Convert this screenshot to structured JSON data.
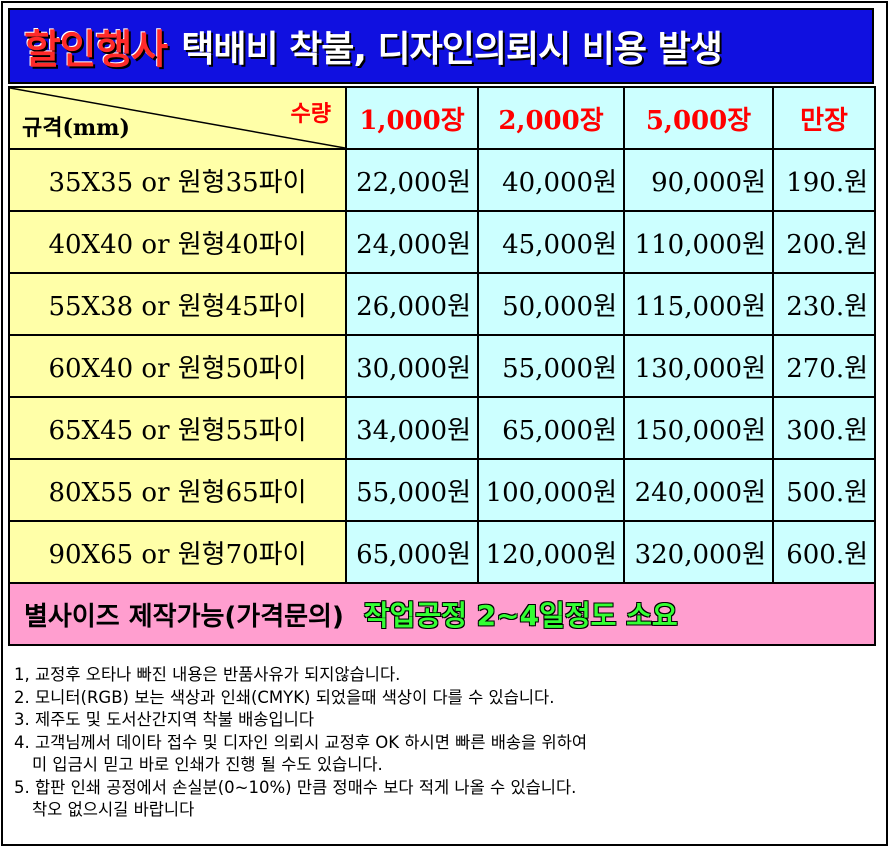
{
  "banner": {
    "highlight": "할인행사",
    "text": "택배비 착불, 디자인의뢰시 비용 발생"
  },
  "table": {
    "corner_qty": "수량",
    "corner_spec": "규격(mm)",
    "quantities": [
      "1,000장",
      "2,000장",
      "5,000장",
      "만장"
    ],
    "rows": [
      {
        "spec": "35X35 or 원형35파이",
        "prices": [
          "22,000원",
          "40,000원",
          "90,000원",
          "190.원"
        ]
      },
      {
        "spec": "40X40 or 원형40파이",
        "prices": [
          "24,000원",
          "45,000원",
          "110,000원",
          "200.원"
        ]
      },
      {
        "spec": "55X38 or 원형45파이",
        "prices": [
          "26,000원",
          "50,000원",
          "115,000원",
          "230.원"
        ]
      },
      {
        "spec": "60X40 or 원형50파이",
        "prices": [
          "30,000원",
          "55,000원",
          "130,000원",
          "270.원"
        ]
      },
      {
        "spec": "65X45 or 원형55파이",
        "prices": [
          "34,000원",
          "65,000원",
          "150,000원",
          "300.원"
        ]
      },
      {
        "spec": "80X55 or 원형65파이",
        "prices": [
          "55,000원",
          "100,000원",
          "240,000원",
          "500.원"
        ]
      },
      {
        "spec": "90X65 or 원형70파이",
        "prices": [
          "65,000원",
          "120,000원",
          "320,000원",
          "600.원"
        ]
      }
    ],
    "footer_left": "별사이즈 제작가능(가격문의)",
    "footer_right": "작업공정 2~4일정도 소요"
  },
  "notes": [
    "1, 교정후 오타나 빠진 내용은 반품사유가 되지않습니다.",
    "2. 모니터(RGB) 보는 색상과 인쇄(CMYK) 되었을때 색상이 다를 수 있습니다.",
    "3. 제주도 및 도서산간지역 착불 배송입니다",
    "4. 고객님께서 데이타 접수 및 디자인 의뢰시 교정후 OK 하시면 빠른 배송을 위하여",
    "미 입금시 믿고 바로 인쇄가 진행 될 수도 있습니다.",
    "5. 합판 인쇄 공정에서 손실분(0~10%) 만큼 정매수 보다 적게 나올 수 있습니다.",
    "착오 없으시길 바랍니다"
  ],
  "colors": {
    "banner_bg": "#1010e0",
    "highlight": "#ff2a2a",
    "spec_bg": "#ffffa8",
    "price_bg": "#ccffff",
    "qty_text": "#ff0000",
    "footer_bg": "#ff9ecf",
    "footer_right": "#33ff33"
  }
}
